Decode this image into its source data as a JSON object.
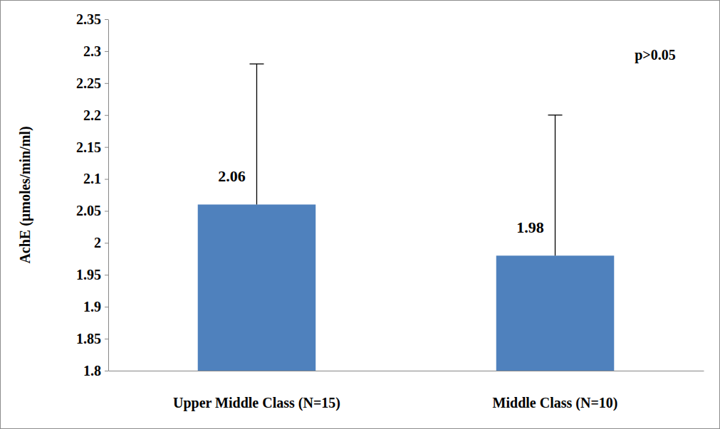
{
  "chart_data": {
    "type": "bar",
    "categories": [
      "Upper Middle Class (N=15)",
      "Middle Class (N=10)"
    ],
    "values": [
      2.06,
      1.98
    ],
    "errors": [
      0.22,
      0.22
    ],
    "color": "#4f81bd",
    "y_label": "AchE (µmoles/min/ml)",
    "annotation": "p>0.05",
    "ylim": [
      1.8,
      2.35
    ],
    "yticks": [
      1.8,
      1.85,
      1.9,
      1.95,
      2,
      2.05,
      2.1,
      2.15,
      2.2,
      2.25,
      2.3,
      2.35
    ],
    "grid": false,
    "data_labels": true
  }
}
